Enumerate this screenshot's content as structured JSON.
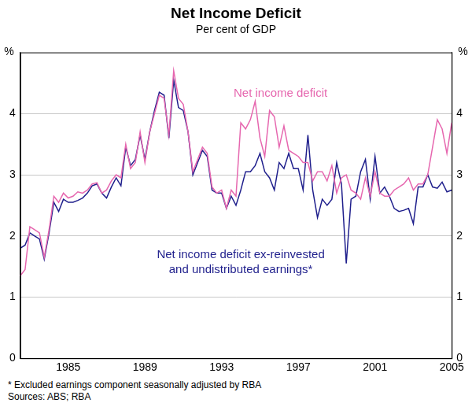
{
  "chart_data": {
    "type": "line",
    "title": "Net Income Deficit",
    "subtitle": "Per cent of GDP",
    "ylabel": "%",
    "notes": [
      "*  Excluded earnings component seasonally adjusted by RBA",
      "Sources: ABS; RBA"
    ],
    "categories": [
      null,
      null,
      null,
      null,
      null,
      null,
      null,
      null,
      null,
      null,
      "1985",
      null,
      null,
      null,
      null,
      null,
      null,
      null,
      null,
      null,
      null,
      null,
      null,
      null,
      null,
      null,
      "1989",
      null,
      null,
      null,
      null,
      null,
      null,
      null,
      null,
      null,
      null,
      null,
      null,
      null,
      null,
      null,
      "1993",
      null,
      null,
      null,
      null,
      null,
      null,
      null,
      null,
      null,
      null,
      null,
      null,
      null,
      null,
      null,
      "1997",
      null,
      null,
      null,
      null,
      null,
      null,
      null,
      null,
      null,
      null,
      null,
      null,
      null,
      null,
      null,
      "2001",
      null,
      null,
      null,
      null,
      null,
      null,
      null,
      null,
      null,
      null,
      null,
      null,
      null,
      null,
      null,
      "2005"
    ],
    "series": [
      {
        "name": "Net income deficit",
        "color": "#e667af",
        "values": [
          1.35,
          1.45,
          2.15,
          2.1,
          2.05,
          1.65,
          2.1,
          2.65,
          2.55,
          2.7,
          2.62,
          2.65,
          2.72,
          2.7,
          2.75,
          2.85,
          2.87,
          2.7,
          2.75,
          2.9,
          3.0,
          2.95,
          3.5,
          3.1,
          3.2,
          3.7,
          3.2,
          3.7,
          4.0,
          4.3,
          4.25,
          3.65,
          4.7,
          4.25,
          4.15,
          3.7,
          3.05,
          3.25,
          3.45,
          3.35,
          2.8,
          2.7,
          2.75,
          2.45,
          2.75,
          2.65,
          3.85,
          3.75,
          3.9,
          4.2,
          3.6,
          3.3,
          4.05,
          3.95,
          3.45,
          3.8,
          3.4,
          3.35,
          3.3,
          3.2,
          3.2,
          2.9,
          3.05,
          3.05,
          2.9,
          3.15,
          2.7,
          2.95,
          3.0,
          2.75,
          2.7,
          2.6,
          2.95,
          2.65,
          3.05,
          2.7,
          2.65,
          2.65,
          2.75,
          2.8,
          2.85,
          2.95,
          2.75,
          2.85,
          2.85,
          3.0,
          3.45,
          3.9,
          3.75,
          3.35,
          3.85
        ]
      },
      {
        "name": "Net income deficit ex-reinvested and undistributed earnings*",
        "color": "#1f1f8c",
        "values": [
          1.8,
          1.85,
          2.05,
          2.0,
          1.95,
          1.62,
          2.05,
          2.55,
          2.4,
          2.6,
          2.55,
          2.55,
          2.58,
          2.62,
          2.7,
          2.82,
          2.85,
          2.7,
          2.62,
          2.8,
          2.95,
          2.82,
          3.45,
          3.15,
          3.25,
          3.65,
          3.25,
          3.7,
          4.05,
          4.35,
          4.3,
          3.6,
          4.55,
          4.1,
          4.05,
          3.7,
          3.0,
          3.2,
          3.4,
          3.3,
          2.75,
          2.7,
          2.7,
          2.45,
          2.65,
          2.5,
          2.75,
          3.05,
          3.05,
          3.15,
          3.35,
          3.05,
          2.95,
          2.75,
          3.2,
          3.1,
          3.35,
          3.1,
          3.1,
          2.75,
          3.65,
          2.75,
          2.3,
          2.6,
          2.5,
          2.6,
          3.2,
          2.85,
          1.55,
          2.6,
          2.65,
          3.05,
          3.25,
          2.6,
          3.3,
          2.7,
          2.8,
          2.65,
          2.45,
          2.4,
          2.42,
          2.45,
          2.2,
          2.8,
          2.8,
          3.0,
          2.8,
          2.78,
          2.88,
          2.72,
          2.75
        ]
      }
    ],
    "ylim": [
      0,
      5
    ],
    "yticks": [
      0,
      1,
      2,
      3,
      4
    ],
    "grid": true,
    "legend": false
  }
}
